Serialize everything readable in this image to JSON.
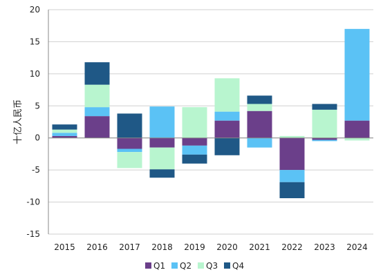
{
  "chart_data": {
    "type": "bar",
    "stacked": true,
    "ylabel": "十亿人民币",
    "ylim": [
      -15,
      20
    ],
    "yticks": [
      -15,
      -10,
      -5,
      0,
      5,
      10,
      15,
      20
    ],
    "categories": [
      "2015",
      "2016",
      "2017",
      "2018",
      "2019",
      "2020",
      "2021",
      "2022",
      "2023",
      "2024"
    ],
    "series": [
      {
        "name": "Q1",
        "color": "#6b3f8a",
        "values": [
          0.3,
          3.4,
          -1.7,
          -1.5,
          -1.2,
          2.7,
          4.2,
          -5.0,
          -0.3,
          2.7
        ]
      },
      {
        "name": "Q2",
        "color": "#5bc2f5",
        "values": [
          0.5,
          1.4,
          -0.5,
          4.9,
          -1.4,
          1.4,
          -1.5,
          -1.9,
          -0.2,
          14.3
        ]
      },
      {
        "name": "Q3",
        "color": "#b8f5cf",
        "values": [
          0.5,
          3.5,
          -2.5,
          -3.4,
          4.8,
          5.2,
          1.1,
          0.3,
          4.4,
          -0.4
        ]
      },
      {
        "name": "Q4",
        "color": "#1f5886",
        "values": [
          0.8,
          3.5,
          3.8,
          -1.3,
          -1.4,
          -2.7,
          1.3,
          -2.5,
          0.9,
          0.0
        ]
      }
    ],
    "legend_position": "bottom",
    "grid": "horizontal"
  }
}
